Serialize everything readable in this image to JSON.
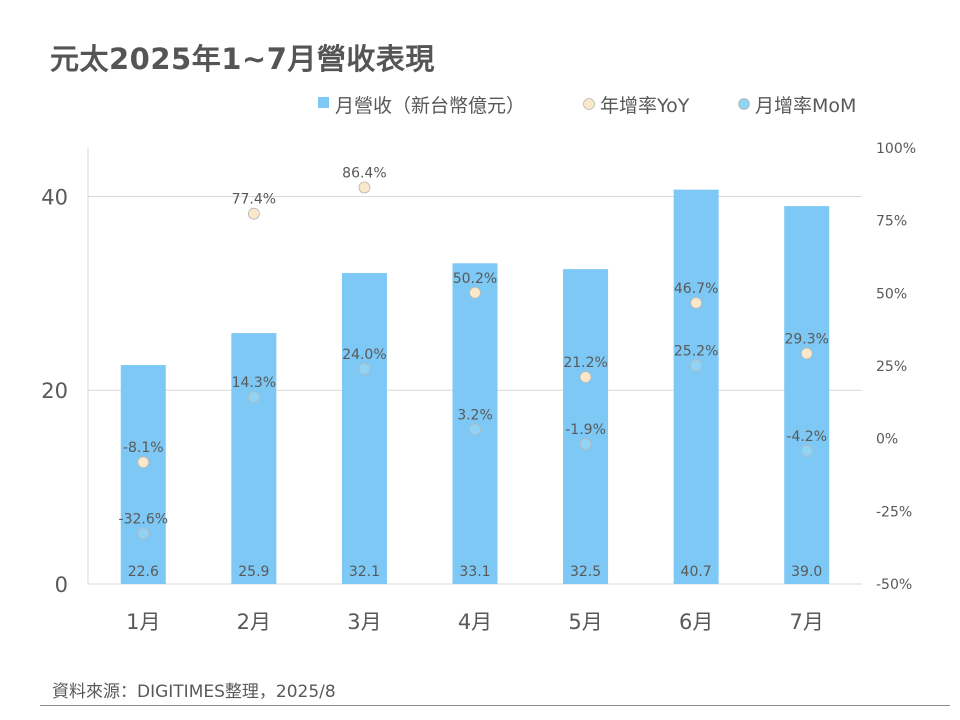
{
  "title": "元太2025年1~7月營收表現",
  "source": "資料來源：DIGITIMES整理，2025/8",
  "colors": {
    "bar": "#7DC8F5",
    "yoy_marker": "#FBE7C9",
    "mom_marker": "#8FD3F5",
    "label_text": "#595959",
    "axis_text": "#595959",
    "gridline": "#d9d9d9"
  },
  "chart_data": {
    "type": "bar",
    "categories": [
      "1月",
      "2月",
      "3月",
      "4月",
      "5月",
      "6月",
      "7月"
    ],
    "series": [
      {
        "name": "月營收（新台幣億元）",
        "type": "bar",
        "axis": "left",
        "values": [
          22.6,
          25.9,
          32.1,
          33.1,
          32.5,
          40.7,
          39.0
        ],
        "labels": [
          "22.6",
          "25.9",
          "32.1",
          "33.1",
          "32.5",
          "40.7",
          "39.0"
        ]
      },
      {
        "name": "年增率YoY",
        "type": "scatter",
        "axis": "right",
        "values": [
          -8.1,
          77.4,
          86.4,
          50.2,
          21.2,
          46.7,
          29.3
        ],
        "labels": [
          "-8.1%",
          "77.4%",
          "86.4%",
          "50.2%",
          "21.2%",
          "46.7%",
          "29.3%"
        ]
      },
      {
        "name": "月增率MoM",
        "type": "scatter",
        "axis": "right",
        "values": [
          -32.6,
          14.3,
          24.0,
          3.2,
          -1.9,
          25.2,
          -4.2
        ],
        "labels": [
          "-32.6%",
          "14.3%",
          "24.0%",
          "3.2%",
          "-1.9%",
          "25.2%",
          "-4.2%"
        ]
      }
    ],
    "y_left": {
      "min": 0,
      "max": 45,
      "ticks": [
        0,
        20,
        40
      ],
      "tick_labels": [
        "0",
        "20",
        "40"
      ]
    },
    "y_right": {
      "min": -50,
      "max": 100,
      "ticks": [
        -50,
        -25,
        0,
        25,
        50,
        75,
        100
      ],
      "tick_labels": [
        "-50%",
        "-25%",
        "0%",
        "25%",
        "50%",
        "75%",
        "100%"
      ]
    },
    "legend_position": "top-right",
    "grid": true
  }
}
